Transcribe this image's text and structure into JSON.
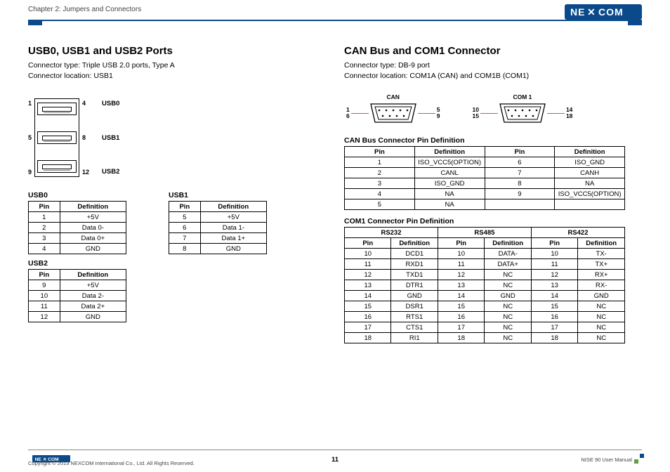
{
  "header": {
    "chapter": "Chapter 2: Jumpers and Connectors",
    "logo_text_main": "NE",
    "logo_text_end": "COM",
    "brand_blue": "#0a4a8a"
  },
  "left": {
    "title": "USB0, USB1 and USB2 Ports",
    "line1": "Connector type: Triple USB 2.0 ports, Type A",
    "line2": "Connector location: USB1",
    "pins_left": [
      "1",
      "5",
      "9"
    ],
    "pins_right": [
      "4",
      "8",
      "12"
    ],
    "names": [
      "USB0",
      "USB1",
      "USB2"
    ],
    "usb0": {
      "title": "USB0",
      "h1": "Pin",
      "h2": "Definition",
      "rows": [
        [
          "1",
          "+5V"
        ],
        [
          "2",
          "Data 0-"
        ],
        [
          "3",
          "Data 0+"
        ],
        [
          "4",
          "GND"
        ]
      ]
    },
    "usb1": {
      "title": "USB1",
      "h1": "Pin",
      "h2": "Definition",
      "rows": [
        [
          "5",
          "+5V"
        ],
        [
          "6",
          "Data 1-"
        ],
        [
          "7",
          "Data 1+"
        ],
        [
          "8",
          "GND"
        ]
      ]
    },
    "usb2": {
      "title": "USB2",
      "h1": "Pin",
      "h2": "Definition",
      "rows": [
        [
          "9",
          "+5V"
        ],
        [
          "10",
          "Data 2-"
        ],
        [
          "11",
          "Data 2+"
        ],
        [
          "12",
          "GND"
        ]
      ]
    }
  },
  "right": {
    "title": "CAN Bus and COM1 Connector",
    "line1": "Connector type: DB-9 port",
    "line2": "Connector location: COM1A (CAN) and COM1B (COM1)",
    "db9a": {
      "title": "CAN",
      "tl": "1",
      "bl": "6",
      "tr": "5",
      "br": "9"
    },
    "db9b": {
      "title": "COM 1",
      "tl": "10",
      "bl": "15",
      "tr": "14",
      "br": "18"
    },
    "can_title": "CAN Bus Connector Pin Definition",
    "can_headers": [
      "Pin",
      "Definition",
      "Pin",
      "Definition"
    ],
    "can_rows": [
      [
        "1",
        "ISO_VCC5(OPTION)",
        "6",
        "ISO_GND"
      ],
      [
        "2",
        "CANL",
        "7",
        "CANH"
      ],
      [
        "3",
        "ISO_GND",
        "8",
        "NA"
      ],
      [
        "4",
        "NA",
        "9",
        "ISO_VCC5(OPTION)"
      ],
      [
        "5",
        "NA",
        "",
        ""
      ]
    ],
    "com_title": "COM1 Connector Pin Definition",
    "com_top": [
      "RS232",
      "RS485",
      "RS422"
    ],
    "com_headers": [
      "Pin",
      "Definition",
      "Pin",
      "Definition",
      "Pin",
      "Definition"
    ],
    "com_rows": [
      [
        "10",
        "DCD1",
        "10",
        "DATA-",
        "10",
        "TX-"
      ],
      [
        "11",
        "RXD1",
        "11",
        "DATA+",
        "11",
        "TX+"
      ],
      [
        "12",
        "TXD1",
        "12",
        "NC",
        "12",
        "RX+"
      ],
      [
        "13",
        "DTR1",
        "13",
        "NC",
        "13",
        "RX-"
      ],
      [
        "14",
        "GND",
        "14",
        "GND",
        "14",
        "GND"
      ],
      [
        "15",
        "DSR1",
        "15",
        "NC",
        "15",
        "NC"
      ],
      [
        "16",
        "RTS1",
        "16",
        "NC",
        "16",
        "NC"
      ],
      [
        "17",
        "CTS1",
        "17",
        "NC",
        "17",
        "NC"
      ],
      [
        "18",
        "RI1",
        "18",
        "NC",
        "18",
        "NC"
      ]
    ]
  },
  "footer": {
    "copyright": "Copyright © 2013 NEXCOM International Co., Ltd. All Rights Reserved.",
    "page": "11",
    "manual": "NISE 90 User Manual"
  }
}
